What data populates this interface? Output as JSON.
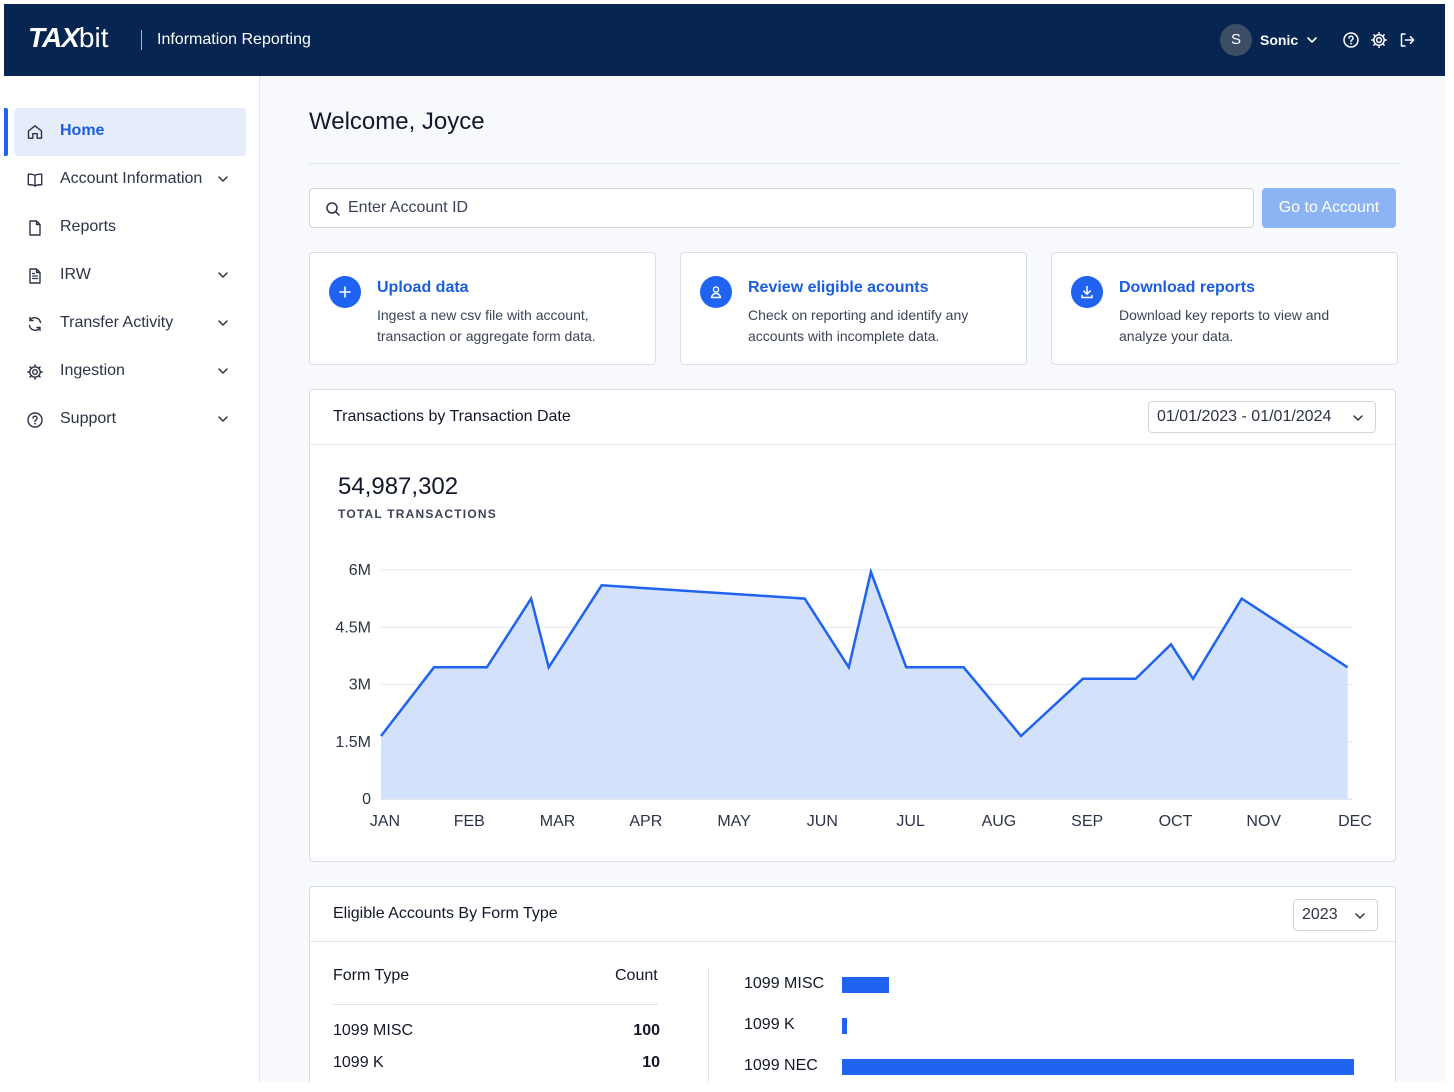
{
  "header": {
    "logo_bold": "TAX",
    "logo_light": "bit",
    "app_title": "Information Reporting",
    "user_initial": "S",
    "user_name": "Sonic"
  },
  "sidebar": {
    "items": [
      {
        "label": "Home",
        "icon": "home-icon",
        "active": true,
        "expandable": false
      },
      {
        "label": "Account Information",
        "icon": "book-icon",
        "active": false,
        "expandable": true
      },
      {
        "label": "Reports",
        "icon": "document-icon",
        "active": false,
        "expandable": false
      },
      {
        "label": "IRW",
        "icon": "file-text-icon",
        "active": false,
        "expandable": true
      },
      {
        "label": "Transfer Activity",
        "icon": "refresh-icon",
        "active": false,
        "expandable": true
      },
      {
        "label": "Ingestion",
        "icon": "gear-icon",
        "active": false,
        "expandable": true
      },
      {
        "label": "Support",
        "icon": "help-circle-icon",
        "active": false,
        "expandable": true
      }
    ]
  },
  "main": {
    "welcome": "Welcome, Joyce",
    "search": {
      "placeholder": "Enter Account ID"
    },
    "go_button": "Go to Account",
    "cards": [
      {
        "title": "Upload data",
        "desc": "Ingest a new csv file with account, transaction or aggregate form data.",
        "icon": "plus-icon"
      },
      {
        "title": "Review eligible acounts",
        "desc": "Check on reporting and identify any accounts with incomplete data.",
        "icon": "user-icon"
      },
      {
        "title": "Download reports",
        "desc": "Download key reports to view and analyze your data.",
        "icon": "download-icon"
      }
    ],
    "transactions": {
      "title": "Transactions by Transaction Date",
      "date_range": "01/01/2023 - 01/01/2024",
      "total": "54,987,302",
      "total_label": "TOTAL TRANSACTIONS"
    },
    "eligible": {
      "title": "Eligible Accounts By Form Type",
      "year": "2023",
      "col_form": "Form Type",
      "col_count": "Count",
      "rows": [
        {
          "form": "1099 MISC",
          "count": "100"
        },
        {
          "form": "1099 K",
          "count": "10"
        }
      ],
      "bars": [
        {
          "label": "1099 MISC",
          "value": 100
        },
        {
          "label": "1099 K",
          "value": 10
        },
        {
          "label": "1099 NEC",
          "value": 1100
        }
      ]
    }
  },
  "colors": {
    "navy": "#062651",
    "accent": "#1f63f0",
    "area_fill": "#d3e1fb"
  },
  "chart_data": {
    "type": "area",
    "title": "",
    "xlabel": "",
    "ylabel": "",
    "ylim": [
      0,
      6000000
    ],
    "yticks": [
      0,
      1500000,
      3000000,
      4500000,
      6000000
    ],
    "ytick_labels": [
      "0",
      "1.5M",
      "3M",
      "4.5M",
      "6M"
    ],
    "categories": [
      "JAN",
      "FEB",
      "MAR",
      "APR",
      "MAY",
      "JUN",
      "JUL",
      "AUG",
      "SEP",
      "OCT",
      "NOV",
      "DEC"
    ],
    "grid": true,
    "legend": "none",
    "x": [
      0,
      0.6,
      1.2,
      1.7,
      1.9,
      2.5,
      4.8,
      5.3,
      5.55,
      5.95,
      6.6,
      7.25,
      7.95,
      8.55,
      8.95,
      9.2,
      9.75,
      10.95
    ],
    "values": [
      1650000,
      3450000,
      3450000,
      5250000,
      3450000,
      5600000,
      5250000,
      3450000,
      5950000,
      3450000,
      3450000,
      1650000,
      3150000,
      3150000,
      4050000,
      3150000,
      5250000,
      3450000
    ]
  }
}
